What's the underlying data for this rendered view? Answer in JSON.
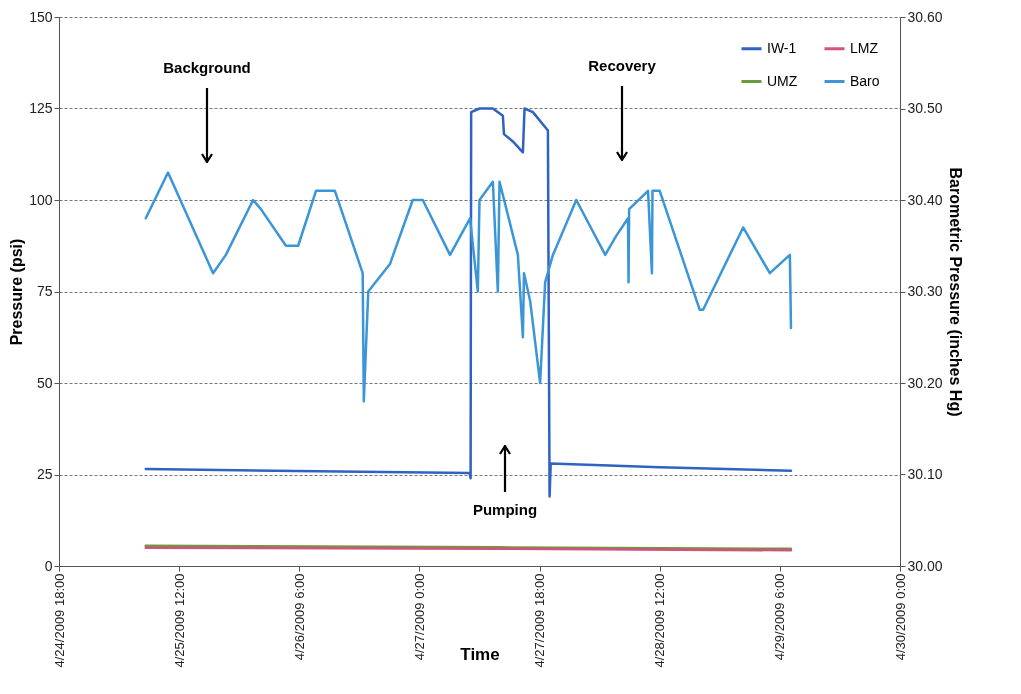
{
  "chart_data": {
    "type": "line",
    "xlabel": "Time",
    "ylabel": "Pressure (psi)",
    "y2label": "Barometric Pressure (inches Hg)",
    "xlim": [
      "2009-04-24T18:00",
      "2009-04-30T00:00"
    ],
    "xticks": [
      {
        "value": "2009-04-24T18:00",
        "label": "4/24/2009 18:00"
      },
      {
        "value": "2009-04-25T12:00",
        "label": "4/25/2009 12:00"
      },
      {
        "value": "2009-04-26T06:00",
        "label": "4/26/2009 6:00"
      },
      {
        "value": "2009-04-27T00:00",
        "label": "4/27/2009 0:00"
      },
      {
        "value": "2009-04-27T18:00",
        "label": "4/27/2009 18:00"
      },
      {
        "value": "2009-04-28T12:00",
        "label": "4/28/2009 12:00"
      },
      {
        "value": "2009-04-29T06:00",
        "label": "4/29/2009 6:00"
      },
      {
        "value": "2009-04-30T00:00",
        "label": "4/30/2009 0:00"
      }
    ],
    "ylim": [
      0,
      150
    ],
    "yticks": [
      0,
      25,
      50,
      75,
      100,
      125,
      150
    ],
    "y2lim": [
      30,
      30.6
    ],
    "y2ticks": [
      {
        "value": 30,
        "label": "30.00"
      },
      {
        "value": 30.1,
        "label": "30.10"
      },
      {
        "value": 30.2,
        "label": "30.20"
      },
      {
        "value": 30.3,
        "label": "30.30"
      },
      {
        "value": 30.4,
        "label": "30.40"
      },
      {
        "value": 30.5,
        "label": "30.50"
      },
      {
        "value": 30.6,
        "label": "30.60"
      }
    ],
    "grid": "y",
    "legend": "top right",
    "annotations": [
      "Background",
      "Recovery",
      "Pumping"
    ],
    "series": [
      {
        "name": "IW-1",
        "color": "#2f62c2",
        "x": [
          "2009-04-25T07:00",
          "2009-04-26T12:00",
          "2009-04-27T07:30",
          "2009-04-27T07:40",
          "2009-04-27T07:45",
          "2009-04-27T09:00",
          "2009-04-27T11:00",
          "2009-04-27T12:30",
          "2009-04-27T12:40",
          "2009-04-27T14:00",
          "2009-04-27T15:30",
          "2009-04-27T15:45",
          "2009-04-27T17:00",
          "2009-04-27T19:15",
          "2009-04-27T19:30",
          "2009-04-27T19:40",
          "2009-04-28T12:00",
          "2009-04-29T07:40"
        ],
        "values": [
          26.5,
          25.8,
          25.4,
          24,
          124,
          125,
          125,
          123,
          118,
          116,
          113,
          125,
          124,
          119,
          19,
          28,
          27,
          26
        ]
      },
      {
        "name": "UMZ",
        "color": "#6a9a3c",
        "x": [
          "2009-04-25T07:00",
          "2009-04-27T12:00",
          "2009-04-29T07:40"
        ],
        "values": [
          5.5,
          5.1,
          4.7
        ]
      },
      {
        "name": "LMZ",
        "color": "#d4507e",
        "x": [
          "2009-04-25T07:00",
          "2009-04-27T12:00",
          "2009-04-29T07:40"
        ],
        "values": [
          5.0,
          4.7,
          4.3
        ]
      },
      {
        "name": "Baro",
        "color": "#3a96d6",
        "axis": "y2",
        "x": [
          "2009-04-25T07:00",
          "2009-04-25T10:20",
          "2009-04-25T17:05",
          "2009-04-25T19:00",
          "2009-04-25T23:05",
          "2009-04-26T00:15",
          "2009-04-26T04:00",
          "2009-04-26T05:50",
          "2009-04-26T08:30",
          "2009-04-26T11:20",
          "2009-04-26T15:30",
          "2009-04-26T15:40",
          "2009-04-26T16:20",
          "2009-04-26T19:35",
          "2009-04-26T23:00",
          "2009-04-27T00:30",
          "2009-04-27T04:35",
          "2009-04-27T07:35",
          "2009-04-27T08:45",
          "2009-04-27T09:00",
          "2009-04-27T11:00",
          "2009-04-27T11:45",
          "2009-04-27T12:00",
          "2009-04-27T14:45",
          "2009-04-27T15:30",
          "2009-04-27T15:40",
          "2009-04-27T16:35",
          "2009-04-27T18:05",
          "2009-04-27T18:50",
          "2009-04-27T20:00",
          "2009-04-27T23:30",
          "2009-04-28T03:50",
          "2009-04-28T05:25",
          "2009-04-28T07:15",
          "2009-04-28T07:20",
          "2009-04-28T07:25",
          "2009-04-28T10:15",
          "2009-04-28T10:50",
          "2009-04-28T10:55",
          "2009-04-28T12:00",
          "2009-04-28T18:00",
          "2009-04-28T18:30",
          "2009-04-29T00:30",
          "2009-04-29T04:30",
          "2009-04-29T07:30",
          "2009-04-29T07:40"
        ],
        "values": [
          30.38,
          30.43,
          30.32,
          30.34,
          30.4,
          30.39,
          30.35,
          30.35,
          30.41,
          30.41,
          30.32,
          30.18,
          30.3,
          30.33,
          30.4,
          30.4,
          30.34,
          30.38,
          30.3,
          30.4,
          30.42,
          30.3,
          30.42,
          30.34,
          30.25,
          30.32,
          30.29,
          30.2,
          30.31,
          30.34,
          30.4,
          30.34,
          30.36,
          30.38,
          30.31,
          30.39,
          30.41,
          30.32,
          30.41,
          30.41,
          30.28,
          30.28,
          30.37,
          30.32,
          30.34,
          30.26
        ]
      }
    ]
  }
}
